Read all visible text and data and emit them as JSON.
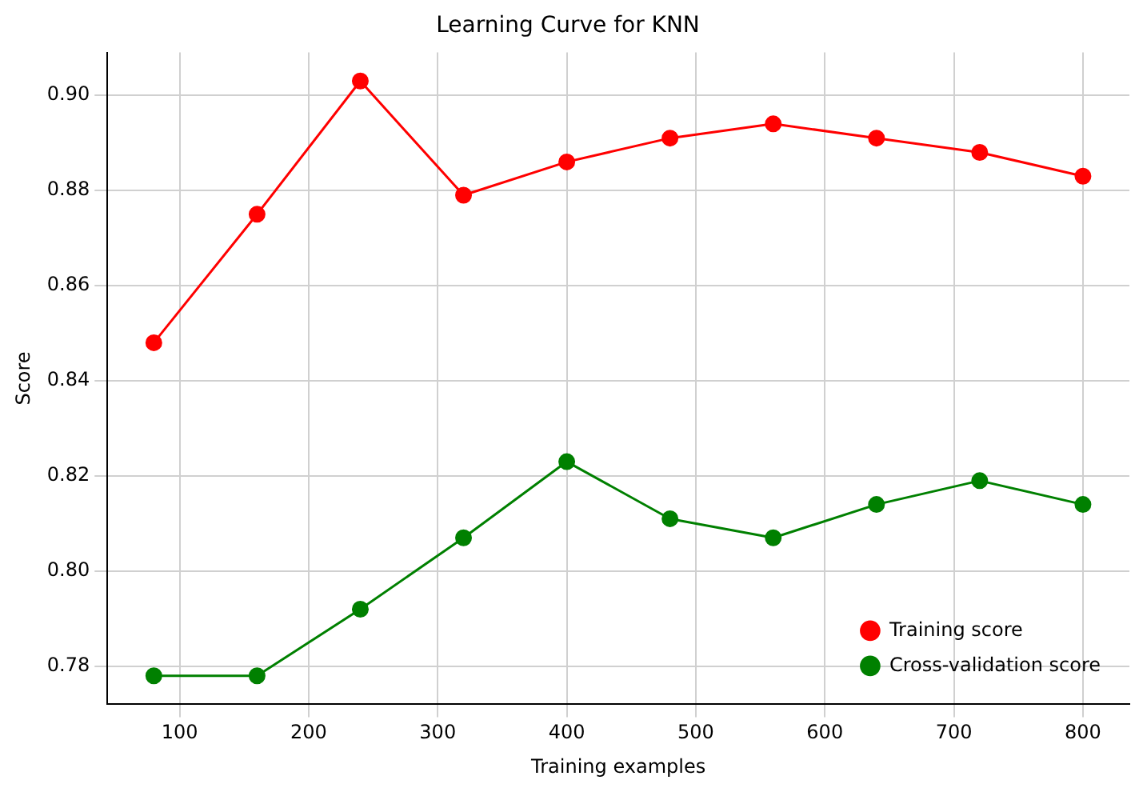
{
  "chart_data": {
    "type": "line",
    "title": "Learning Curve for KNN",
    "xlabel": "Training examples",
    "ylabel": "Score",
    "x": [
      80,
      160,
      240,
      320,
      400,
      480,
      560,
      640,
      720,
      800
    ],
    "series": [
      {
        "name": "Training score",
        "color": "#ff0000",
        "values": [
          0.848,
          0.875,
          0.903,
          0.879,
          0.886,
          0.891,
          0.894,
          0.891,
          0.888,
          0.883
        ]
      },
      {
        "name": "Cross-validation score",
        "color": "#008000",
        "values": [
          0.778,
          0.778,
          0.792,
          0.807,
          0.823,
          0.811,
          0.807,
          0.814,
          0.819,
          0.814
        ]
      }
    ],
    "xlim": [
      44,
      836
    ],
    "xticks": [
      100,
      200,
      300,
      400,
      500,
      600,
      700,
      800
    ],
    "ylim": [
      0.772,
      0.909
    ],
    "yticks": [
      {
        "value": 0.78,
        "label": "0.78"
      },
      {
        "value": 0.8,
        "label": "0.80"
      },
      {
        "value": 0.82,
        "label": "0.82"
      },
      {
        "value": 0.84,
        "label": "0.84"
      },
      {
        "value": 0.86,
        "label": "0.86"
      },
      {
        "value": 0.88,
        "label": "0.88"
      },
      {
        "value": 0.9,
        "label": "0.90"
      }
    ],
    "grid": true,
    "legend": "bottom right",
    "marker": "circle",
    "line_style": "solid"
  }
}
